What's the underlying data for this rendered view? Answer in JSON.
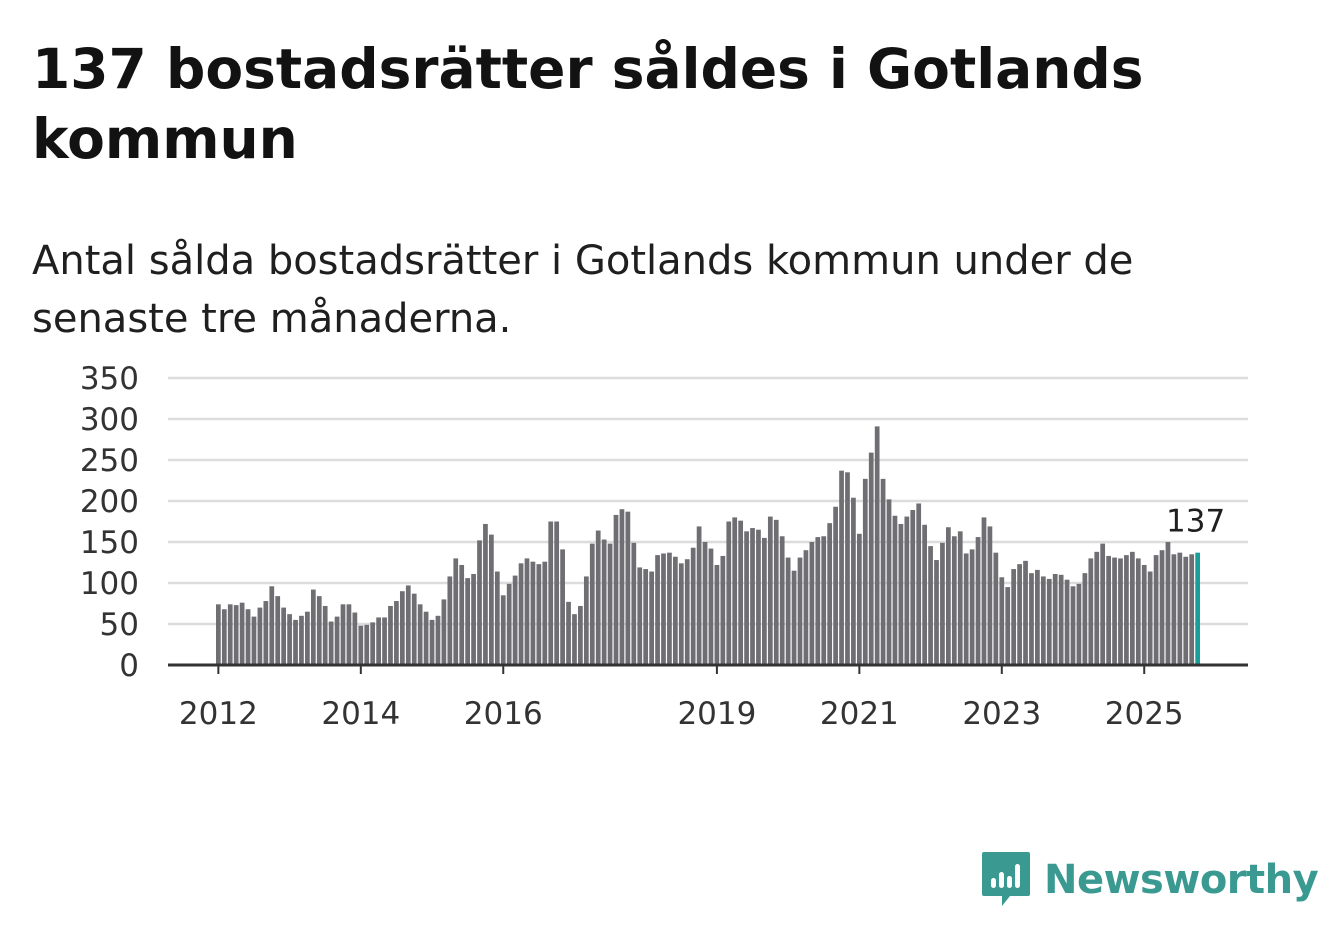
{
  "header": {
    "title": "137 bostadsrätter såldes i Gotlands kommun",
    "subtitle": "Antal sålda bostadsrätter i Gotlands kommun under de senaste tre månaderna."
  },
  "brand": {
    "name": "Newsworthy",
    "color": "#3a9a92",
    "icon": "newsworthy-logo-icon"
  },
  "colors": {
    "bar": "#6f6e73",
    "highlight": "#1a9e9a",
    "grid": "#dcdcdc",
    "axis": "#333333"
  },
  "chart_data": {
    "type": "bar",
    "title": "137 bostadsrätter såldes i Gotlands kommun",
    "subtitle": "Antal sålda bostadsrätter i Gotlands kommun under de senaste tre månaderna.",
    "xlabel": "",
    "ylabel": "",
    "ylim": [
      0,
      350
    ],
    "yticks": [
      "0",
      "50",
      "100",
      "150",
      "200",
      "250",
      "300",
      "350"
    ],
    "grid": true,
    "start": "2012-01",
    "xtick_labels": [
      {
        "label": "2012",
        "index": 0
      },
      {
        "label": "2014",
        "index": 24
      },
      {
        "label": "2016",
        "index": 48
      },
      {
        "label": "2019",
        "index": 84
      },
      {
        "label": "2021",
        "index": 108
      },
      {
        "label": "2023",
        "index": 132
      },
      {
        "label": "2025",
        "index": 156
      }
    ],
    "highlight_label": "137",
    "values": [
      74,
      68,
      74,
      73,
      76,
      68,
      59,
      70,
      78,
      96,
      84,
      70,
      62,
      55,
      60,
      65,
      92,
      84,
      72,
      53,
      59,
      74,
      74,
      64,
      48,
      49,
      52,
      58,
      58,
      72,
      78,
      90,
      97,
      87,
      74,
      65,
      55,
      60,
      80,
      108,
      130,
      122,
      106,
      111,
      152,
      172,
      159,
      114,
      85,
      99,
      109,
      124,
      130,
      126,
      123,
      126,
      175,
      175,
      141,
      77,
      62,
      72,
      108,
      148,
      164,
      153,
      148,
      183,
      190,
      187,
      149,
      119,
      117,
      114,
      134,
      136,
      137,
      132,
      124,
      129,
      143,
      169,
      150,
      142,
      122,
      133,
      175,
      180,
      176,
      163,
      167,
      165,
      155,
      181,
      177,
      157,
      131,
      115,
      131,
      140,
      150,
      156,
      157,
      173,
      193,
      237,
      235,
      204,
      160,
      227,
      259,
      291,
      227,
      202,
      182,
      172,
      181,
      189,
      197,
      171,
      145,
      128,
      149,
      168,
      157,
      163,
      136,
      141,
      156,
      180,
      169,
      137,
      107,
      95,
      117,
      123,
      127,
      112,
      116,
      108,
      105,
      111,
      110,
      104,
      96,
      99,
      112,
      130,
      138,
      148,
      133,
      131,
      130,
      134,
      138,
      130,
      122,
      114,
      134,
      140,
      150,
      135,
      137,
      132,
      135,
      137
    ]
  }
}
